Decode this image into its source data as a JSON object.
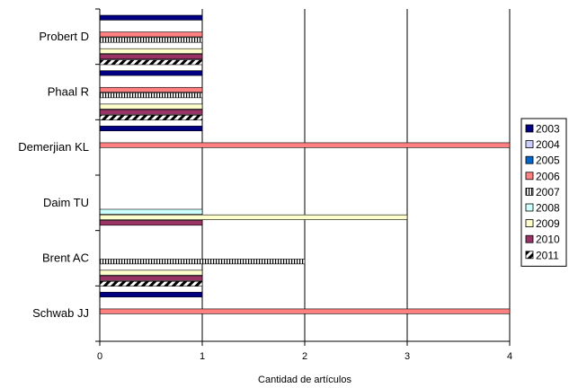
{
  "chart_data": {
    "type": "bar",
    "orientation": "horizontal",
    "categories": [
      "Probert D",
      "Phaal R",
      "Demerjian KL",
      "Daim TU",
      "Brent AC",
      "Schwab JJ"
    ],
    "series": [
      {
        "name": "2003",
        "values": [
          1,
          1,
          1,
          0,
          0,
          1
        ],
        "color": "#000080",
        "pattern": "solid"
      },
      {
        "name": "2004",
        "values": [
          0,
          0,
          0,
          0,
          0,
          0
        ],
        "color": "#ccccff",
        "pattern": "solid"
      },
      {
        "name": "2005",
        "values": [
          0,
          0,
          0,
          0,
          0,
          0
        ],
        "color": "#0066cc",
        "pattern": "solid"
      },
      {
        "name": "2006",
        "values": [
          1,
          1,
          4,
          0,
          0,
          4
        ],
        "color": "#ff8080",
        "pattern": "solid"
      },
      {
        "name": "2007",
        "values": [
          1,
          1,
          0,
          0,
          2,
          0
        ],
        "color": "#ffffff",
        "pattern": "vertical-lines"
      },
      {
        "name": "2008",
        "values": [
          0,
          0,
          0,
          1,
          0,
          0
        ],
        "color": "#ccffff",
        "pattern": "solid"
      },
      {
        "name": "2009",
        "values": [
          1,
          1,
          0,
          3,
          1,
          0
        ],
        "color": "#ffffcc",
        "pattern": "solid"
      },
      {
        "name": "2010",
        "values": [
          1,
          1,
          0,
          1,
          1,
          0
        ],
        "color": "#993366",
        "pattern": "solid"
      },
      {
        "name": "2011",
        "values": [
          1,
          1,
          0,
          0,
          1,
          0
        ],
        "color": "#ffffff",
        "pattern": "diagonal-stripes"
      }
    ],
    "xlabel": "Cantidad de artículos",
    "ylabel": "",
    "xlim": [
      0,
      4
    ],
    "xticks": [
      "0",
      "1",
      "2",
      "3",
      "4"
    ],
    "grid": "vertical",
    "legend_position": "right"
  }
}
